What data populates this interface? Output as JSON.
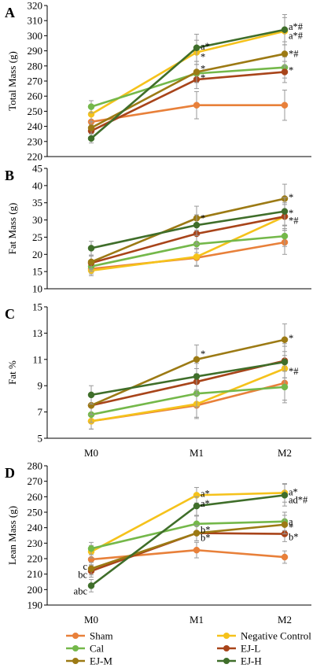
{
  "x_categories": [
    "M0",
    "M1",
    "M2"
  ],
  "legend": [
    {
      "name": "Sham",
      "color": "#e8803a"
    },
    {
      "name": "Negative Control",
      "color": "#f5c21b"
    },
    {
      "name": "Cal",
      "color": "#74b84a"
    },
    {
      "name": "EJ-L",
      "color": "#a8441a"
    },
    {
      "name": "EJ-M",
      "color": "#9c7a14"
    },
    {
      "name": "EJ-H",
      "color": "#3f6e2a"
    }
  ],
  "chart_data": [
    {
      "type": "line",
      "panel": "A",
      "ylabel": "Total Mass (g)",
      "categories": [
        "M0",
        "M1",
        "M2"
      ],
      "ylim": [
        220,
        320
      ],
      "yticks": [
        220,
        230,
        240,
        250,
        260,
        270,
        280,
        290,
        300,
        310,
        320
      ],
      "series": [
        {
          "name": "Sham",
          "values": [
            243,
            254,
            254
          ],
          "err": [
            4,
            9,
            10
          ]
        },
        {
          "name": "Negative Control",
          "values": [
            248,
            289,
            303
          ],
          "err": [
            5,
            8,
            9
          ]
        },
        {
          "name": "Cal",
          "values": [
            253,
            275,
            279
          ],
          "err": [
            4,
            6,
            7
          ]
        },
        {
          "name": "EJ-L",
          "values": [
            237,
            271,
            276
          ],
          "err": [
            4,
            6,
            7
          ]
        },
        {
          "name": "EJ-M",
          "values": [
            239,
            276,
            288
          ],
          "err": [
            4,
            7,
            8
          ]
        },
        {
          "name": "EJ-H",
          "values": [
            232,
            292,
            304
          ],
          "err": [
            3,
            9,
            10
          ]
        }
      ],
      "annotations": [
        {
          "text": "a*",
          "x": "M1",
          "y": 293
        },
        {
          "text": "*",
          "x": "M1",
          "y": 286
        },
        {
          "text": "*",
          "x": "M1",
          "y": 278
        },
        {
          "text": "*",
          "x": "M1",
          "y": 272
        },
        {
          "text": "a*#",
          "x": "M2",
          "y": 306
        },
        {
          "text": "a*#",
          "x": "M2",
          "y": 300
        },
        {
          "text": "*#",
          "x": "M2",
          "y": 288
        },
        {
          "text": "*",
          "x": "M2",
          "y": 277
        }
      ]
    },
    {
      "type": "line",
      "panel": "B",
      "ylabel": "Fat Mass (g)",
      "categories": [
        "M0",
        "M1",
        "M2"
      ],
      "ylim": [
        10,
        45
      ],
      "yticks": [
        10,
        15,
        20,
        25,
        30,
        35,
        40,
        45
      ],
      "series": [
        {
          "name": "Sham",
          "values": [
            15.8,
            19.0,
            23.5
          ],
          "err": [
            1.5,
            2.5,
            3.5
          ]
        },
        {
          "name": "Negative Control",
          "values": [
            15.3,
            19.3,
            31.0
          ],
          "err": [
            1.5,
            2.5,
            3.5
          ]
        },
        {
          "name": "Cal",
          "values": [
            16.5,
            23.0,
            25.3
          ],
          "err": [
            1.5,
            2.5,
            3.0
          ]
        },
        {
          "name": "EJ-L",
          "values": [
            17.5,
            26.0,
            31.0
          ],
          "err": [
            2.0,
            3.0,
            4.0
          ]
        },
        {
          "name": "EJ-M",
          "values": [
            17.8,
            30.5,
            36.2
          ],
          "err": [
            2.0,
            3.5,
            4.2
          ]
        },
        {
          "name": "EJ-H",
          "values": [
            21.8,
            28.5,
            32.5
          ],
          "err": [
            2.0,
            3.0,
            4.0
          ]
        }
      ],
      "annotations": [
        {
          "text": "*",
          "x": "M1",
          "y": 30.5
        },
        {
          "text": "*",
          "x": "M2",
          "y": 36.5
        },
        {
          "text": "*",
          "x": "M2",
          "y": 32.0
        },
        {
          "text": "*#",
          "x": "M2",
          "y": 29.8
        }
      ]
    },
    {
      "type": "line",
      "panel": "C",
      "ylabel": "Fat %",
      "categories": [
        "M0",
        "M1",
        "M2"
      ],
      "ylim": [
        5,
        15
      ],
      "yticks": [
        5,
        7,
        9,
        11,
        13,
        15
      ],
      "series": [
        {
          "name": "Sham",
          "values": [
            6.3,
            7.5,
            9.2
          ],
          "err": [
            0.6,
            1.0,
            1.3
          ]
        },
        {
          "name": "Negative Control",
          "values": [
            6.3,
            7.6,
            10.3
          ],
          "err": [
            0.6,
            1.0,
            1.3
          ]
        },
        {
          "name": "Cal",
          "values": [
            6.8,
            8.4,
            8.9
          ],
          "err": [
            0.6,
            1.0,
            1.2
          ]
        },
        {
          "name": "EJ-L",
          "values": [
            7.5,
            9.3,
            10.9
          ],
          "err": [
            0.7,
            1.0,
            1.3
          ]
        },
        {
          "name": "EJ-M",
          "values": [
            7.5,
            11.0,
            12.5
          ],
          "err": [
            0.7,
            1.1,
            1.2
          ]
        },
        {
          "name": "EJ-H",
          "values": [
            8.3,
            9.7,
            10.8
          ],
          "err": [
            0.7,
            1.0,
            1.2
          ]
        }
      ],
      "annotations": [
        {
          "text": "*",
          "x": "M1",
          "y": 11.4
        },
        {
          "text": "*",
          "x": "M2",
          "y": 12.6
        },
        {
          "text": "*#",
          "x": "M2",
          "y": 10.1
        }
      ]
    },
    {
      "type": "line",
      "panel": "D",
      "ylabel": "Lean Mass (g)",
      "categories": [
        "M0",
        "M1",
        "M2"
      ],
      "ylim": [
        190,
        280
      ],
      "yticks": [
        190,
        200,
        210,
        220,
        230,
        240,
        250,
        260,
        270,
        280
      ],
      "series": [
        {
          "name": "Sham",
          "values": [
            219.5,
            225.5,
            221.0
          ],
          "err": [
            4,
            5,
            4
          ]
        },
        {
          "name": "Negative Control",
          "values": [
            224.5,
            261.0,
            262.5
          ],
          "err": [
            4,
            5,
            6
          ]
        },
        {
          "name": "Cal",
          "values": [
            226.5,
            242.5,
            244.0
          ],
          "err": [
            4,
            5,
            6
          ]
        },
        {
          "name": "EJ-L",
          "values": [
            212.0,
            236.5,
            236.0
          ],
          "err": [
            4,
            5,
            5
          ]
        },
        {
          "name": "EJ-M",
          "values": [
            213.5,
            236.5,
            242.0
          ],
          "err": [
            4,
            5,
            6
          ]
        },
        {
          "name": "EJ-H",
          "values": [
            202.5,
            254.0,
            261.0
          ],
          "err": [
            4,
            6,
            7
          ]
        }
      ],
      "annotations": [
        {
          "text": "a*",
          "x": "M1",
          "y": 262
        },
        {
          "text": "a*",
          "x": "M1",
          "y": 255.5
        },
        {
          "text": "b*",
          "x": "M1",
          "y": 238.5
        },
        {
          "text": "b*",
          "x": "M1",
          "y": 233.5
        },
        {
          "text": "a*",
          "x": "M2",
          "y": 263
        },
        {
          "text": "ad*#",
          "x": "M2",
          "y": 258
        },
        {
          "text": "a",
          "x": "M2",
          "y": 244
        },
        {
          "text": "*",
          "x": "M2",
          "y": 240
        },
        {
          "text": "b*",
          "x": "M2",
          "y": 234
        },
        {
          "text": "c",
          "x": "M0",
          "y": 215
        },
        {
          "text": "bc",
          "x": "M0",
          "y": 209.5
        },
        {
          "text": "abc",
          "x": "M0",
          "y": 199
        }
      ]
    }
  ]
}
